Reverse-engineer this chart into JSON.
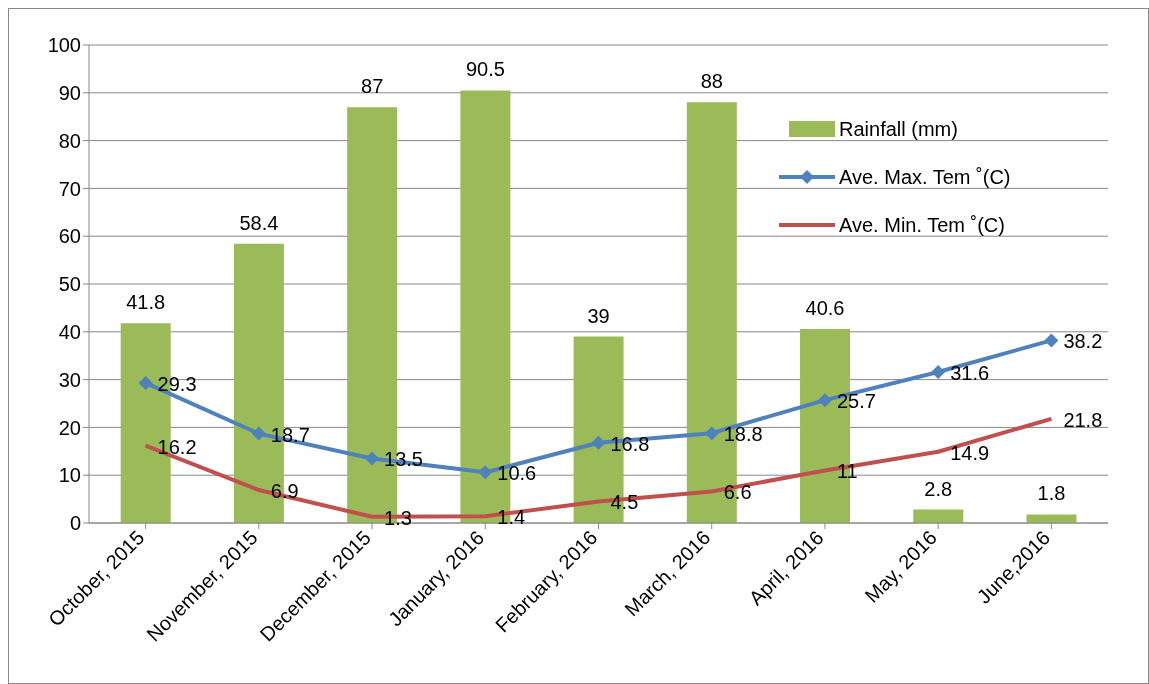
{
  "chart_data": {
    "type": "bar",
    "categories": [
      "October, 2015",
      "November, 2015",
      "December,  2015",
      "January, 2016",
      "February, 2016",
      "March, 2016",
      "April, 2016",
      "May, 2016",
      "June,2016"
    ],
    "series": [
      {
        "name": "Rainfall (mm)",
        "color": "#9bbb59",
        "values": [
          41.8,
          58.4,
          87,
          90.5,
          39,
          88,
          40.6,
          2.8,
          1.8
        ]
      },
      {
        "name": "Ave. Max. Tem ˚(C)",
        "type": "line",
        "color": "#4f81bd",
        "marker": "diamond",
        "values": [
          29.3,
          18.7,
          13.5,
          10.6,
          16.8,
          18.8,
          25.7,
          31.6,
          38.2
        ]
      },
      {
        "name": "Ave. Min. Tem ˚(C)",
        "type": "line",
        "color": "#c0504d",
        "marker": "none",
        "values": [
          16.2,
          6.9,
          1.3,
          1.4,
          4.5,
          6.6,
          11,
          14.9,
          21.8
        ]
      }
    ],
    "ylim": [
      0,
      100
    ],
    "yticks": [
      0,
      10,
      20,
      30,
      40,
      50,
      60,
      70,
      80,
      90,
      100
    ],
    "grid": "y",
    "legend": "top right",
    "data_labels": true
  }
}
